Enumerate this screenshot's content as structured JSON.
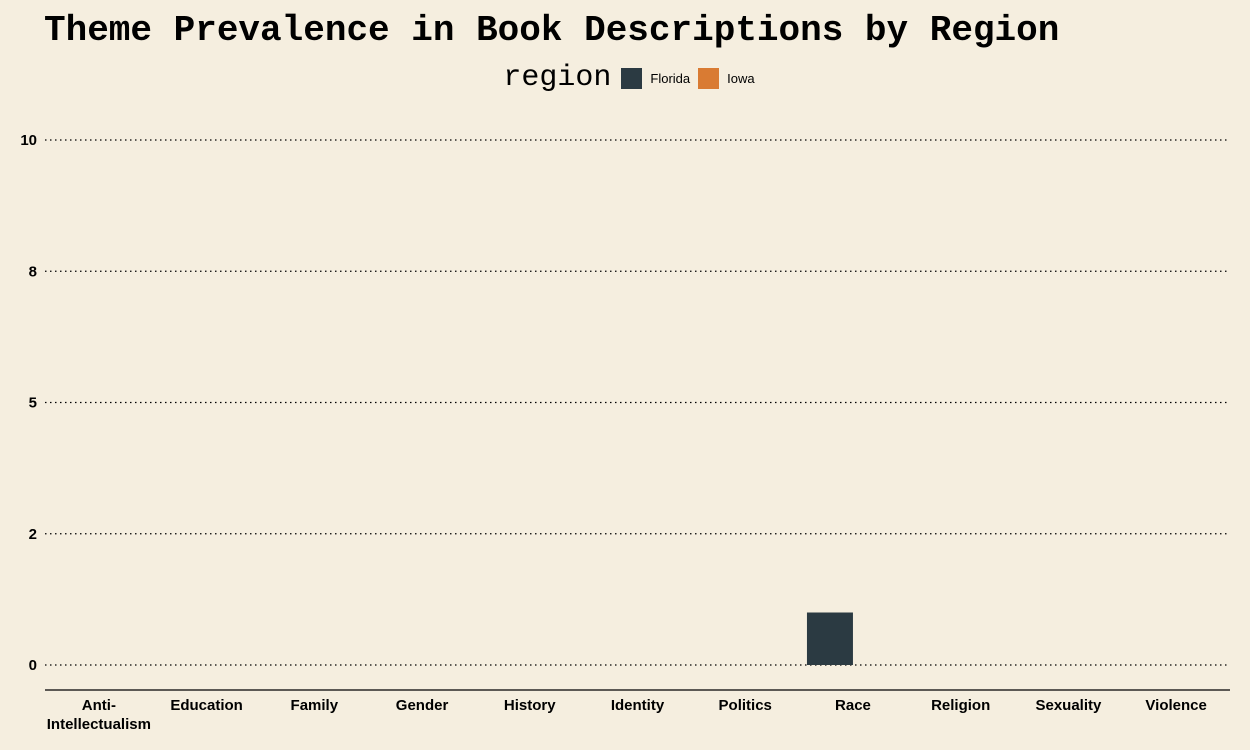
{
  "chart_data": {
    "type": "bar",
    "title": "Theme Prevalence in Book Descriptions by Region",
    "legend_title": "region",
    "legend_position": "top-center",
    "grid": "horizontal-dotted",
    "categories": [
      "Anti-Intellectualism",
      "Education",
      "Family",
      "Gender",
      "History",
      "Identity",
      "Politics",
      "Race",
      "Religion",
      "Sexuality",
      "Violence"
    ],
    "category_tick_labels": [
      [
        "Anti-",
        "Intellectualism"
      ],
      [
        "Education"
      ],
      [
        "Family"
      ],
      [
        "Gender"
      ],
      [
        "History"
      ],
      [
        "Identity"
      ],
      [
        "Politics"
      ],
      [
        "Race"
      ],
      [
        "Religion"
      ],
      [
        "Sexuality"
      ],
      [
        "Violence"
      ]
    ],
    "series": [
      {
        "name": "Florida",
        "color": "#2B3A42",
        "values": [
          0,
          0,
          0,
          0,
          0,
          0,
          0,
          1,
          0,
          0,
          0
        ]
      },
      {
        "name": "Iowa",
        "color": "#D97B33",
        "values": [
          0,
          0,
          0,
          0,
          0,
          0,
          0,
          0,
          0,
          0,
          0
        ]
      }
    ],
    "y_ticks": [
      0,
      2.5,
      5,
      7.5,
      10
    ],
    "y_tick_labels": [
      "0",
      "2",
      "5",
      "8",
      "10"
    ],
    "ylim": [
      0,
      10
    ],
    "xlabel": "",
    "ylabel": ""
  }
}
